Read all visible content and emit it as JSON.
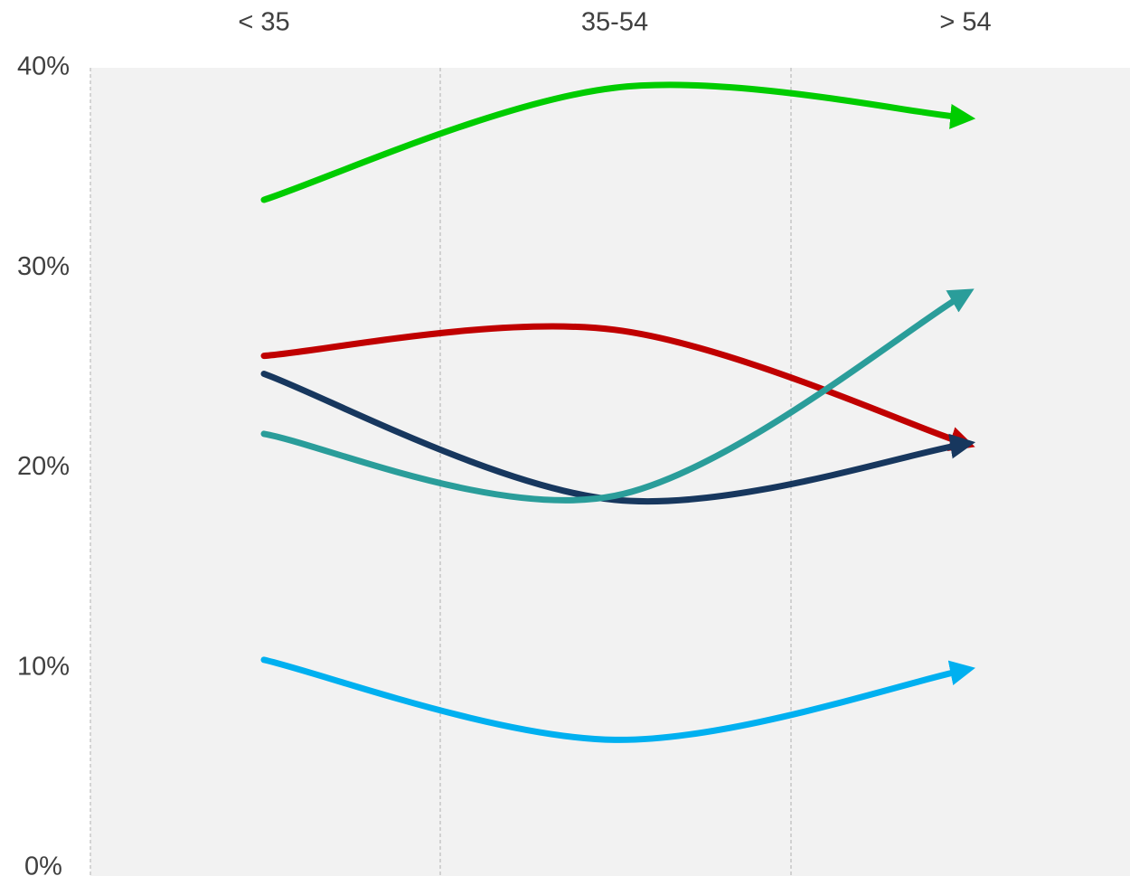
{
  "chart_data": {
    "type": "line",
    "categories": [
      "< 35",
      "35-54",
      "> 54"
    ],
    "series": [
      {
        "color": "#00cc00",
        "values": [
          33.4,
          39,
          37.5
        ]
      },
      {
        "color": "#c00000",
        "values": [
          25.6,
          26.9,
          21.2
        ]
      },
      {
        "color": "#17375e",
        "values": [
          24.7,
          18.4,
          21.2
        ]
      },
      {
        "color": "#2a9d9a",
        "values": [
          21.7,
          18.6,
          28.7
        ]
      },
      {
        "color": "#00b0f0",
        "values": [
          10.4,
          6.4,
          9.9
        ]
      }
    ],
    "ylim": [
      0,
      40
    ],
    "yticks": [
      {
        "value": 0,
        "label": "0%"
      },
      {
        "value": 10,
        "label": "10%"
      },
      {
        "value": 20,
        "label": "20%"
      },
      {
        "value": 30,
        "label": "30%"
      },
      {
        "value": 40,
        "label": "40%"
      }
    ]
  }
}
